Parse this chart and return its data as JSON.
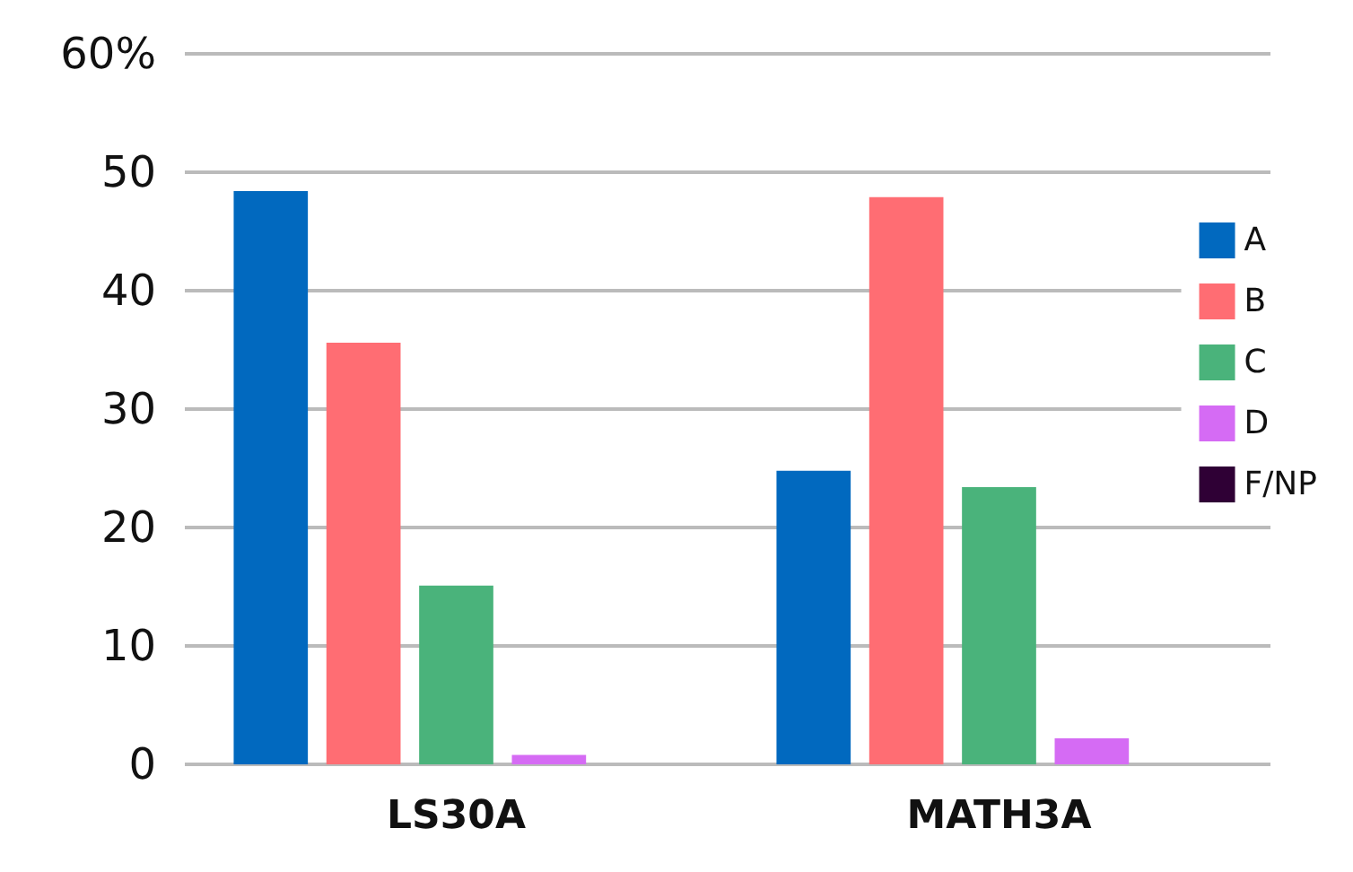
{
  "chart_data": {
    "type": "bar",
    "categories": [
      "LS30A",
      "MATH3A"
    ],
    "series": [
      {
        "name": "A",
        "color": "#0169bf",
        "values": [
          48.4,
          24.8
        ]
      },
      {
        "name": "B",
        "color": "#ff6d73",
        "values": [
          35.6,
          47.9
        ]
      },
      {
        "name": "C",
        "color": "#4ab37b",
        "values": [
          15.1,
          23.4
        ]
      },
      {
        "name": "D",
        "color": "#d56bf4",
        "values": [
          0.8,
          2.2
        ]
      },
      {
        "name": "F/NP",
        "color": "#2f0035",
        "values": [
          0,
          0
        ]
      }
    ],
    "ylim": [
      0,
      60
    ],
    "yticks": [
      0,
      10,
      20,
      30,
      40,
      50,
      {
        "value": 60,
        "label": "60%"
      }
    ],
    "grid": "y",
    "legend": "right"
  }
}
